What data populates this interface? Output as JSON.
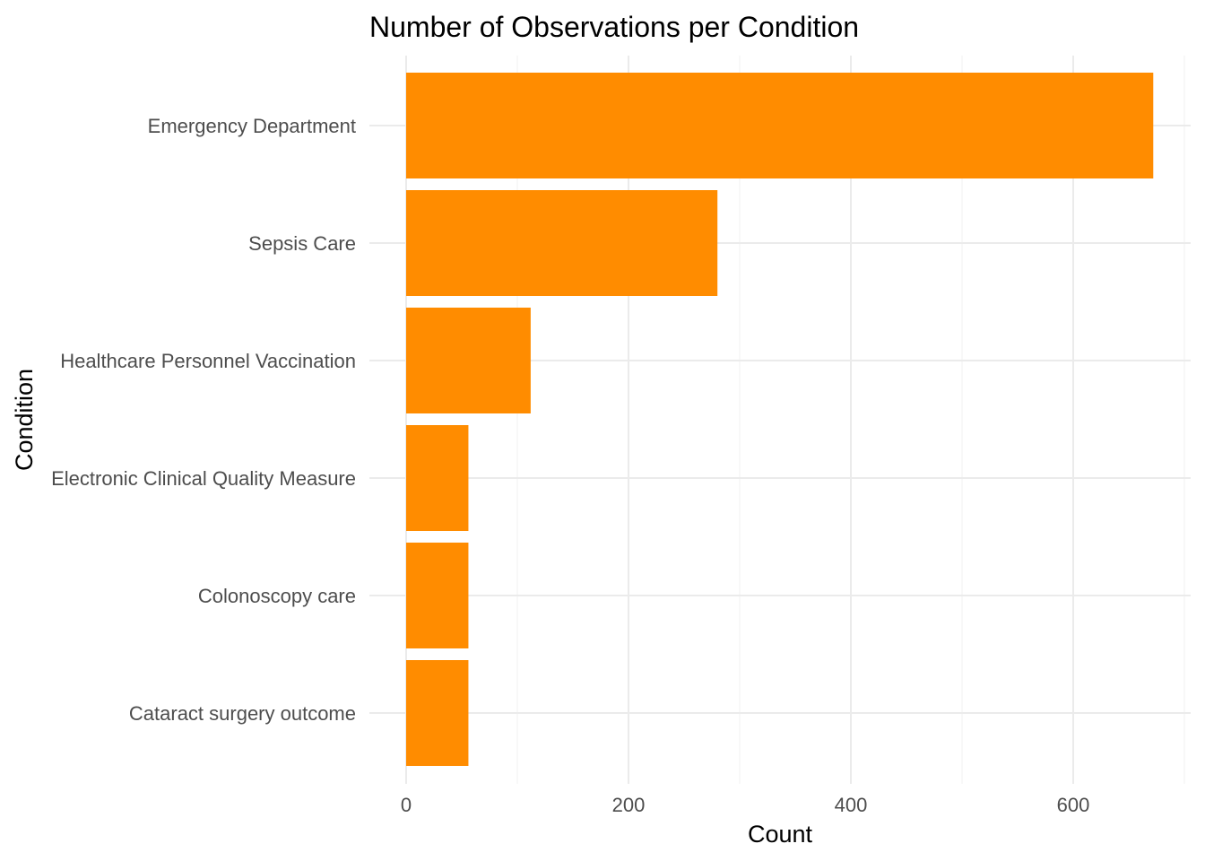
{
  "colors": {
    "bar": "#ff8c00",
    "background": "#ffffff"
  },
  "chart_data": {
    "type": "bar",
    "orientation": "horizontal",
    "title": "Number of Observations per Condition",
    "xlabel": "Count",
    "ylabel": "Condition",
    "categories": [
      "Emergency Department",
      "Sepsis Care",
      "Healthcare Personnel Vaccination",
      "Electronic Clinical Quality Measure",
      "Colonoscopy care",
      "Cataract surgery outcome"
    ],
    "values": [
      672,
      280,
      112,
      56,
      56,
      56
    ],
    "xlim": [
      0,
      700
    ],
    "xticks": [
      0,
      200,
      400,
      600
    ],
    "xtick_labels": [
      "0",
      "200",
      "400",
      "600"
    ],
    "grid": true,
    "legend": "none"
  }
}
